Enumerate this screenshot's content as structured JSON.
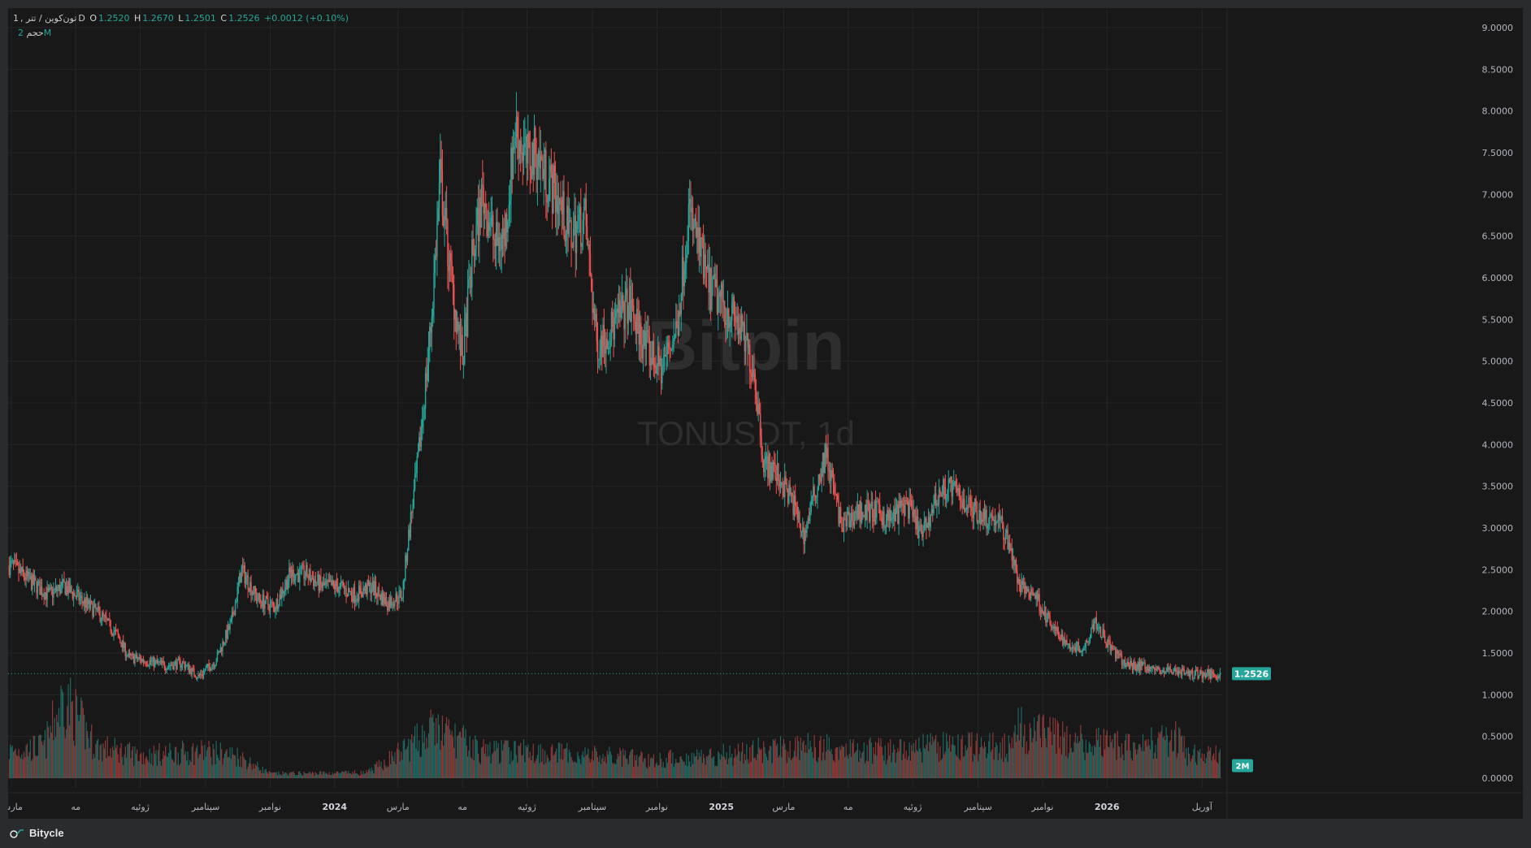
{
  "header": {
    "interval": "1",
    "pair_name": "تون‌کوین / تتر",
    "exchange_mark": "D",
    "open_label": "O",
    "open": "1.2520",
    "high_label": "H",
    "high": "1.2670",
    "low_label": "L",
    "low": "1.2501",
    "close_label": "C",
    "close": "1.2526",
    "change": "+0.0012 (+0.10%)"
  },
  "volume_legend": {
    "label": "حجم",
    "value": "2M"
  },
  "watermark": {
    "line1": "Bitpin",
    "line2": "TONUSDT, 1d"
  },
  "footer": {
    "brand": "Bitycle"
  },
  "colors": {
    "up": "#26a69a",
    "down": "#ef5350",
    "background": "#181818",
    "grid": "#262626",
    "text": "#b2b5be",
    "price_tag": "#26a69a"
  },
  "chart_data": {
    "type": "candlestick",
    "symbol": "TONUSDT",
    "interval": "1d",
    "price_axis": {
      "ticks": [
        "9.0000",
        "8.5000",
        "8.0000",
        "7.5000",
        "7.0000",
        "6.5000",
        "6.0000",
        "5.5000",
        "5.0000",
        "4.5000",
        "4.0000",
        "3.5000",
        "3.0000",
        "2.5000",
        "2.0000",
        "1.5000",
        "1.0000",
        "0.5000",
        "0.0000"
      ],
      "range": [
        0,
        9
      ]
    },
    "x_axis": {
      "labels": [
        "مارس",
        "مه",
        "ژوئیه",
        "سپتامبر",
        "نوامبر",
        "2024",
        "مارس",
        "مه",
        "ژوئیه",
        "سپتامبر",
        "نوامبر",
        "2025",
        "مارس",
        "مه",
        "ژوئیه",
        "سپتامبر",
        "نوامبر",
        "2026",
        "آوریل"
      ],
      "dates": [
        "2023-03",
        "2023-05",
        "2023-07",
        "2023-09",
        "2023-11",
        "2024-01",
        "2024-03",
        "2024-05",
        "2024-07",
        "2024-09",
        "2024-11",
        "2025-01",
        "2025-03",
        "2025-05",
        "2025-07",
        "2025-09",
        "2025-11",
        "2026-01",
        "2026-04"
      ]
    },
    "last_price": "1.2526",
    "volume_tag": "2M",
    "price_path": [
      [
        "2023-03-01",
        2.55
      ],
      [
        "2023-03-20",
        2.35
      ],
      [
        "2023-04-05",
        2.2
      ],
      [
        "2023-04-20",
        2.3
      ],
      [
        "2023-05-10",
        2.1
      ],
      [
        "2023-05-25",
        1.95
      ],
      [
        "2023-06-10",
        1.7
      ],
      [
        "2023-06-20",
        1.45
      ],
      [
        "2023-07-10",
        1.4
      ],
      [
        "2023-07-25",
        1.35
      ],
      [
        "2023-08-10",
        1.38
      ],
      [
        "2023-08-25",
        1.22
      ],
      [
        "2023-09-10",
        1.4
      ],
      [
        "2023-09-25",
        1.85
      ],
      [
        "2023-10-05",
        2.5
      ],
      [
        "2023-10-20",
        2.15
      ],
      [
        "2023-11-05",
        2.05
      ],
      [
        "2023-11-20",
        2.45
      ],
      [
        "2023-12-05",
        2.45
      ],
      [
        "2023-12-20",
        2.3
      ],
      [
        "2024-01-05",
        2.3
      ],
      [
        "2024-01-20",
        2.2
      ],
      [
        "2024-02-05",
        2.3
      ],
      [
        "2024-02-20",
        2.1
      ],
      [
        "2024-03-05",
        2.2
      ],
      [
        "2024-03-10",
        2.8
      ],
      [
        "2024-03-20",
        3.8
      ],
      [
        "2024-04-01",
        5.4
      ],
      [
        "2024-04-10",
        7.2
      ],
      [
        "2024-04-20",
        6.0
      ],
      [
        "2024-05-01",
        5.0
      ],
      [
        "2024-05-10",
        6.2
      ],
      [
        "2024-05-20",
        7.0
      ],
      [
        "2024-06-01",
        6.4
      ],
      [
        "2024-06-10",
        6.5
      ],
      [
        "2024-06-20",
        7.8
      ],
      [
        "2024-07-01",
        7.4
      ],
      [
        "2024-07-10",
        7.5
      ],
      [
        "2024-07-20",
        7.2
      ],
      [
        "2024-08-01",
        6.9
      ],
      [
        "2024-08-10",
        6.5
      ],
      [
        "2024-08-25",
        6.7
      ],
      [
        "2024-09-05",
        5.2
      ],
      [
        "2024-09-20",
        5.4
      ],
      [
        "2024-10-05",
        5.7
      ],
      [
        "2024-10-20",
        5.2
      ],
      [
        "2024-11-05",
        4.9
      ],
      [
        "2024-11-20",
        5.4
      ],
      [
        "2024-12-01",
        6.8
      ],
      [
        "2024-12-10",
        6.4
      ],
      [
        "2024-12-20",
        5.9
      ],
      [
        "2025-01-01",
        5.7
      ],
      [
        "2025-01-15",
        5.5
      ],
      [
        "2025-02-01",
        4.9
      ],
      [
        "2025-02-10",
        3.8
      ],
      [
        "2025-02-25",
        3.6
      ],
      [
        "2025-03-10",
        3.3
      ],
      [
        "2025-03-20",
        2.9
      ],
      [
        "2025-04-01",
        3.5
      ],
      [
        "2025-04-10",
        3.9
      ],
      [
        "2025-04-25",
        3.0
      ],
      [
        "2025-05-10",
        3.2
      ],
      [
        "2025-05-25",
        3.2
      ],
      [
        "2025-06-10",
        3.1
      ],
      [
        "2025-06-25",
        3.3
      ],
      [
        "2025-07-10",
        2.9
      ],
      [
        "2025-07-25",
        3.4
      ],
      [
        "2025-08-05",
        3.5
      ],
      [
        "2025-08-20",
        3.3
      ],
      [
        "2025-09-05",
        3.15
      ],
      [
        "2025-09-20",
        3.1
      ],
      [
        "2025-10-01",
        2.8
      ],
      [
        "2025-10-10",
        2.3
      ],
      [
        "2025-10-25",
        2.2
      ],
      [
        "2025-11-10",
        1.8
      ],
      [
        "2025-11-25",
        1.6
      ],
      [
        "2025-12-10",
        1.55
      ],
      [
        "2025-12-20",
        1.9
      ],
      [
        "2026-01-05",
        1.55
      ],
      [
        "2026-01-20",
        1.35
      ],
      [
        "2026-02-05",
        1.35
      ],
      [
        "2026-02-20",
        1.28
      ],
      [
        "2026-03-05",
        1.3
      ],
      [
        "2026-03-20",
        1.25
      ]
    ],
    "volume_path": [
      [
        "2023-03-01",
        0.3
      ],
      [
        "2023-04-01",
        0.35
      ],
      [
        "2023-04-20",
        0.9
      ],
      [
        "2023-05-20",
        0.35
      ],
      [
        "2023-07-01",
        0.25
      ],
      [
        "2023-09-01",
        0.3
      ],
      [
        "2023-10-01",
        0.25
      ],
      [
        "2023-11-01",
        0.05
      ],
      [
        "2024-02-01",
        0.06
      ],
      [
        "2024-03-05",
        0.3
      ],
      [
        "2024-04-05",
        0.55
      ],
      [
        "2024-05-20",
        0.3
      ],
      [
        "2024-07-01",
        0.3
      ],
      [
        "2024-09-01",
        0.25
      ],
      [
        "2024-11-01",
        0.2
      ],
      [
        "2024-12-20",
        0.25
      ],
      [
        "2025-02-01",
        0.3
      ],
      [
        "2025-04-01",
        0.35
      ],
      [
        "2025-06-01",
        0.3
      ],
      [
        "2025-08-01",
        0.35
      ],
      [
        "2025-10-01",
        0.35
      ],
      [
        "2025-10-05",
        0.55
      ],
      [
        "2025-12-01",
        0.4
      ],
      [
        "2026-02-01",
        0.35
      ],
      [
        "2026-03-05",
        0.45
      ],
      [
        "2026-03-20",
        0.25
      ]
    ]
  }
}
